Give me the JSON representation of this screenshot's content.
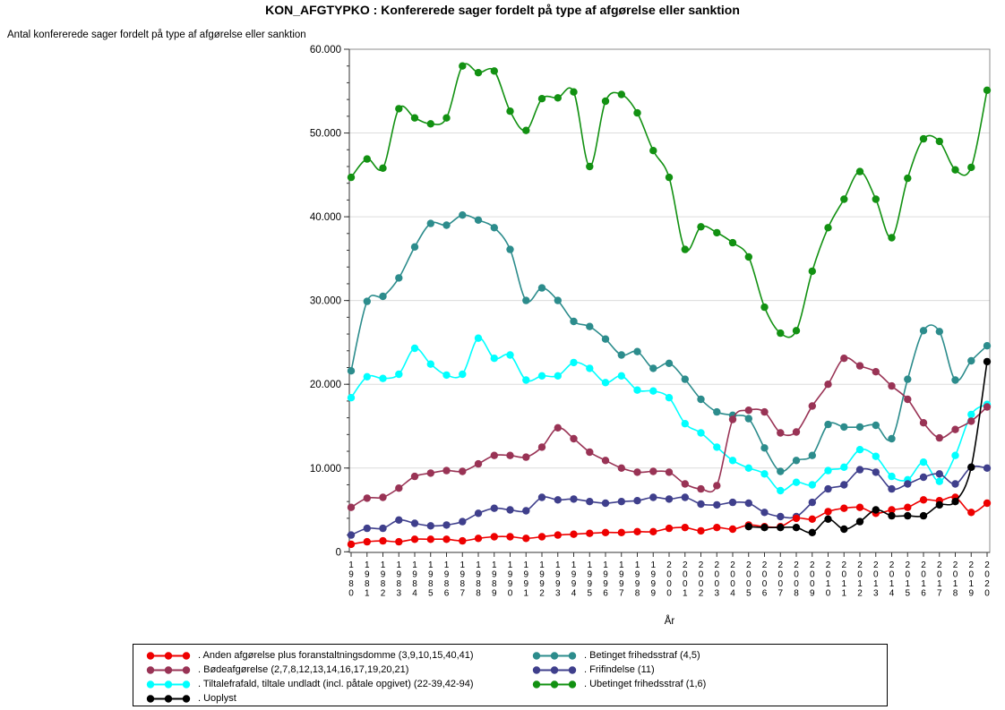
{
  "title": "KON_AFGTYPKO : Konfererede sager fordelt på type af afgørelse eller sanktion",
  "y_axis_title": "Antal konfererede sager fordelt på type af afgørelse eller sanktion",
  "x_axis_label": "År",
  "chart_data": {
    "type": "line",
    "x_label": "År",
    "x": [
      1980,
      1981,
      1982,
      1983,
      1984,
      1985,
      1986,
      1987,
      1988,
      1989,
      1990,
      1991,
      1992,
      1993,
      1994,
      1995,
      1996,
      1997,
      1998,
      1999,
      2000,
      2001,
      2002,
      2003,
      2004,
      2005,
      2006,
      2007,
      2008,
      2009,
      2010,
      2011,
      2012,
      2013,
      2014,
      2015,
      2016,
      2017,
      2018,
      2019,
      2020
    ],
    "ylim": [
      0,
      60000
    ],
    "grid": true,
    "legend_position": "bottom",
    "y_ticks": [
      {
        "value": 0,
        "label": "0"
      },
      {
        "value": 10000,
        "label": "10.000"
      },
      {
        "value": 20000,
        "label": "20.000"
      },
      {
        "value": 30000,
        "label": "30.000"
      },
      {
        "value": 40000,
        "label": "40.000"
      },
      {
        "value": 50000,
        "label": "50.000"
      },
      {
        "value": 60000,
        "label": "60.000"
      }
    ],
    "series": [
      {
        "id": "anden",
        "label": ". Anden afgørelse plus foranstaltningsdomme (3,9,10,15,40,41)",
        "color": "#ee0000",
        "values": [
          900,
          1200,
          1300,
          1200,
          1500,
          1500,
          1500,
          1300,
          1600,
          1800,
          1800,
          1600,
          1800,
          2000,
          2100,
          2200,
          2300,
          2300,
          2400,
          2400,
          2800,
          2900,
          2500,
          2900,
          2700,
          3200,
          3000,
          3000,
          4000,
          3900,
          4800,
          5200,
          5300,
          4600,
          5000,
          5300,
          6200,
          6100,
          6500,
          4700,
          5800
        ]
      },
      {
        "id": "betinget",
        "label": ". Betinget frihedsstraf (4,5)",
        "color": "#2c8c8c",
        "values": [
          21600,
          29900,
          30500,
          32700,
          36400,
          39200,
          39000,
          40200,
          39600,
          38700,
          36100,
          30000,
          31500,
          30000,
          27500,
          26900,
          25400,
          23500,
          23900,
          21900,
          22500,
          20600,
          18200,
          16700,
          16300,
          15900,
          12400,
          9600,
          10900,
          11500,
          15200,
          14900,
          14900,
          15100,
          13500,
          20600,
          26400,
          26300,
          20500,
          22800,
          24600
        ]
      },
      {
        "id": "boede",
        "label": ". Bødeafgørelse (2,7,8,12,13,14,16,17,19,20,21)",
        "color": "#993355",
        "values": [
          5300,
          6400,
          6500,
          7600,
          9000,
          9400,
          9700,
          9600,
          10500,
          11500,
          11500,
          11300,
          12500,
          14800,
          13500,
          11900,
          10900,
          10000,
          9500,
          9600,
          9500,
          8100,
          7500,
          7900,
          15800,
          16900,
          16700,
          14200,
          14300,
          17400,
          20000,
          23100,
          22200,
          21500,
          19800,
          18200,
          15400,
          13600,
          14600,
          15600,
          17300
        ]
      },
      {
        "id": "frifindelse",
        "label": ". Frifindelse (11)",
        "color": "#3f3f8c",
        "values": [
          2000,
          2800,
          2800,
          3800,
          3400,
          3100,
          3200,
          3600,
          4600,
          5200,
          5000,
          4900,
          6500,
          6200,
          6300,
          6000,
          5800,
          6000,
          6100,
          6500,
          6300,
          6500,
          5700,
          5600,
          5900,
          5800,
          4700,
          4200,
          4200,
          5900,
          7500,
          8000,
          9800,
          9500,
          7500,
          8100,
          8900,
          9300,
          8100,
          10100,
          10000
        ]
      },
      {
        "id": "tiltale",
        "label": ". Tiltalefrafald, tiltale undladt (incl. påtale opgivet) (22-39,42-94)",
        "color": "#00ffff",
        "values": [
          18400,
          20900,
          20700,
          21200,
          24300,
          22400,
          21100,
          21200,
          25500,
          23100,
          23500,
          20500,
          21000,
          21000,
          22600,
          21900,
          20200,
          21000,
          19300,
          19200,
          18400,
          15300,
          14200,
          12500,
          10900,
          10000,
          9300,
          7300,
          8300,
          8000,
          9700,
          10100,
          12200,
          11400,
          9000,
          8600,
          10700,
          8400,
          11500,
          16400,
          17600
        ]
      },
      {
        "id": "ubetinget",
        "label": ". Ubetinget frihedsstraf (1,6)",
        "color": "#129112",
        "values": [
          44700,
          46900,
          45800,
          52900,
          51800,
          51100,
          51800,
          58000,
          57200,
          57400,
          52600,
          50300,
          54100,
          54200,
          54900,
          46000,
          53800,
          54600,
          52400,
          47900,
          44700,
          36100,
          38800,
          38100,
          36900,
          35200,
          29200,
          26100,
          26400,
          33500,
          38700,
          42100,
          45400,
          42100,
          37500,
          44600,
          49300,
          49000,
          45600,
          45900,
          55100
        ]
      },
      {
        "id": "uoplyst",
        "label": ". Uoplyst",
        "color": "#000000",
        "values": [
          null,
          null,
          null,
          null,
          null,
          null,
          null,
          null,
          null,
          null,
          null,
          null,
          null,
          null,
          null,
          null,
          null,
          null,
          null,
          null,
          null,
          null,
          null,
          null,
          null,
          3000,
          2900,
          2900,
          2900,
          2300,
          3900,
          2700,
          3600,
          5000,
          4300,
          4300,
          4300,
          5600,
          6000,
          10100,
          22700
        ]
      }
    ]
  },
  "legend": {
    "columns": [
      [
        "anden",
        "boede",
        "tiltale",
        "uoplyst"
      ],
      [
        "betinget",
        "frifindelse",
        "ubetinget"
      ]
    ]
  },
  "style": {
    "grid_color": "#dcdcdc",
    "frame_color": "#8c8c8c",
    "axis_color": "#333333",
    "text_color": "#000000"
  }
}
